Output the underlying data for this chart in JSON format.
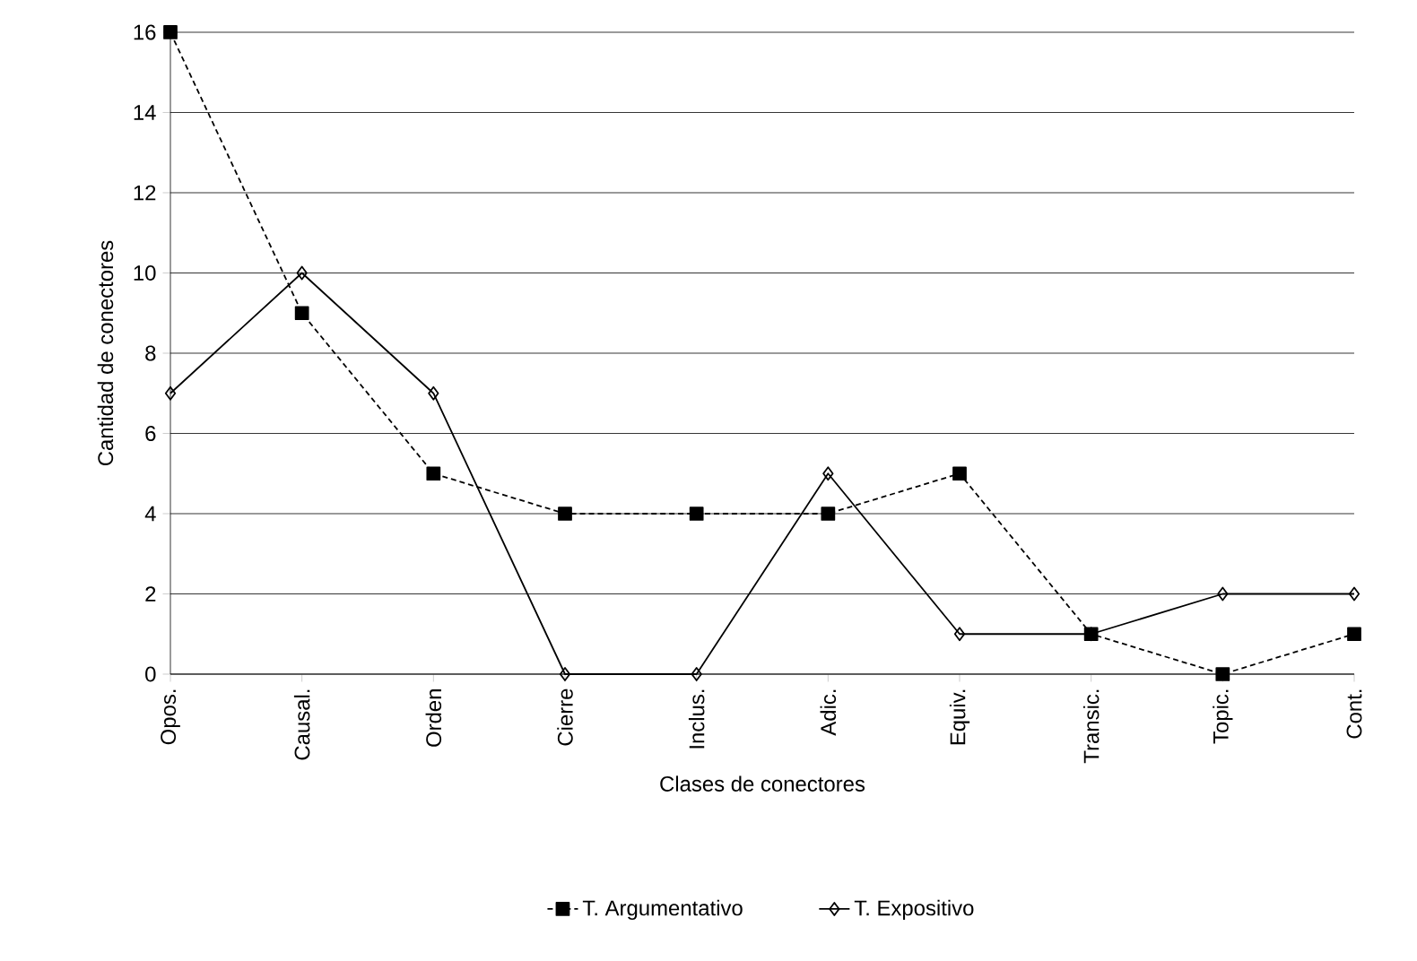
{
  "chart_data": {
    "type": "line",
    "xlabel": "Clases de conectores",
    "ylabel": "Cantidad de conectores",
    "categories": [
      "Opos.",
      "Causal.",
      "Orden",
      "Cierre",
      "Inclus.",
      "Adic.",
      "Equiv.",
      "Transic.",
      "Topic.",
      "Cont."
    ],
    "series": [
      {
        "name": "T. Argumentativo",
        "color": "#000000",
        "line_style": "dashed",
        "marker": "square",
        "values": [
          16,
          9,
          5,
          4,
          4,
          4,
          5,
          1,
          0,
          1
        ]
      },
      {
        "name": "T. Expositivo",
        "color": "#000000",
        "line_style": "solid",
        "marker": "diamond",
        "values": [
          7,
          10,
          7,
          0,
          0,
          5,
          1,
          1,
          2,
          2
        ]
      }
    ],
    "ylim": [
      0,
      16
    ],
    "yticks": [
      0,
      2,
      4,
      6,
      8,
      10,
      12,
      14,
      16
    ],
    "grid": "y",
    "legend": "bottom"
  }
}
